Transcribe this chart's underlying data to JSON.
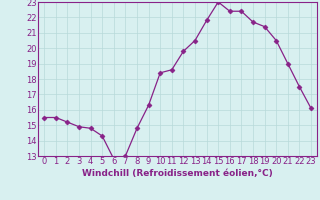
{
  "hours": [
    0,
    1,
    2,
    3,
    4,
    5,
    6,
    7,
    8,
    9,
    10,
    11,
    12,
    13,
    14,
    15,
    16,
    17,
    18,
    19,
    20,
    21,
    22,
    23
  ],
  "values": [
    15.5,
    15.5,
    15.2,
    14.9,
    14.8,
    14.3,
    12.8,
    13.0,
    14.8,
    16.3,
    18.4,
    18.6,
    19.8,
    20.5,
    21.8,
    23.0,
    22.4,
    22.4,
    21.7,
    21.4,
    20.5,
    19.0,
    17.5,
    16.1
  ],
  "line_color": "#882288",
  "marker": "D",
  "marker_size": 2.5,
  "xlabel": "Windchill (Refroidissement éolien,°C)",
  "ylim": [
    13,
    23
  ],
  "xlim": [
    -0.5,
    23.5
  ],
  "yticks": [
    13,
    14,
    15,
    16,
    17,
    18,
    19,
    20,
    21,
    22,
    23
  ],
  "xticks": [
    0,
    1,
    2,
    3,
    4,
    5,
    6,
    7,
    8,
    9,
    10,
    11,
    12,
    13,
    14,
    15,
    16,
    17,
    18,
    19,
    20,
    21,
    22,
    23
  ],
  "bg_color": "#d8f0f0",
  "grid_color": "#b8dada",
  "tick_color": "#882288",
  "xlabel_fontsize": 6.5,
  "tick_fontsize": 6.0,
  "spine_color": "#882288"
}
